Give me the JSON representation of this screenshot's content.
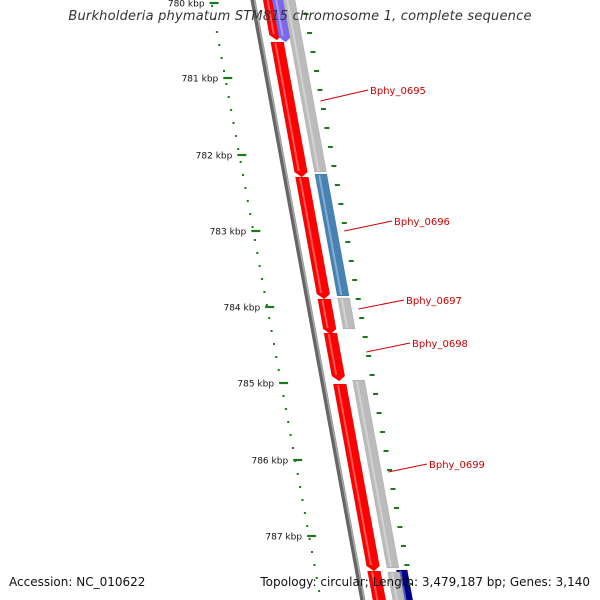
{
  "title": "Burkholderia phymatum STM815 chromosome 1, complete sequence",
  "footer": {
    "accession": "Accession: NC_010622",
    "summary": "Topology: circular; Length: 3,479,187 bp; Genes: 3,140"
  },
  "ruler": {
    "unit": "kbp",
    "ticks": [
      {
        "label": "780 kbp",
        "kbp": 780
      },
      {
        "label": "781 kbp",
        "kbp": 781
      },
      {
        "label": "782 kbp",
        "kbp": 782
      },
      {
        "label": "783 kbp",
        "kbp": 783
      },
      {
        "label": "784 kbp",
        "kbp": 784
      },
      {
        "label": "785 kbp",
        "kbp": 785
      },
      {
        "label": "786 kbp",
        "kbp": 786
      },
      {
        "label": "787 kbp",
        "kbp": 787
      }
    ]
  },
  "colors": {
    "forward_cds": "#ff0000",
    "reverse_cds": "#7b68ee",
    "reverse_cds_dark": "#00008b",
    "gene_feature": "#bbbbbb",
    "highlight_feature": "#4682b4",
    "backbone": "#666666",
    "tick": "#1a7a1a",
    "gene_label": "#cc0000"
  },
  "genes": [
    {
      "label": "Bphy_0695"
    },
    {
      "label": "Bphy_0696"
    },
    {
      "label": "Bphy_0697"
    },
    {
      "label": "Bphy_0698"
    },
    {
      "label": "Bphy_0699"
    }
  ]
}
